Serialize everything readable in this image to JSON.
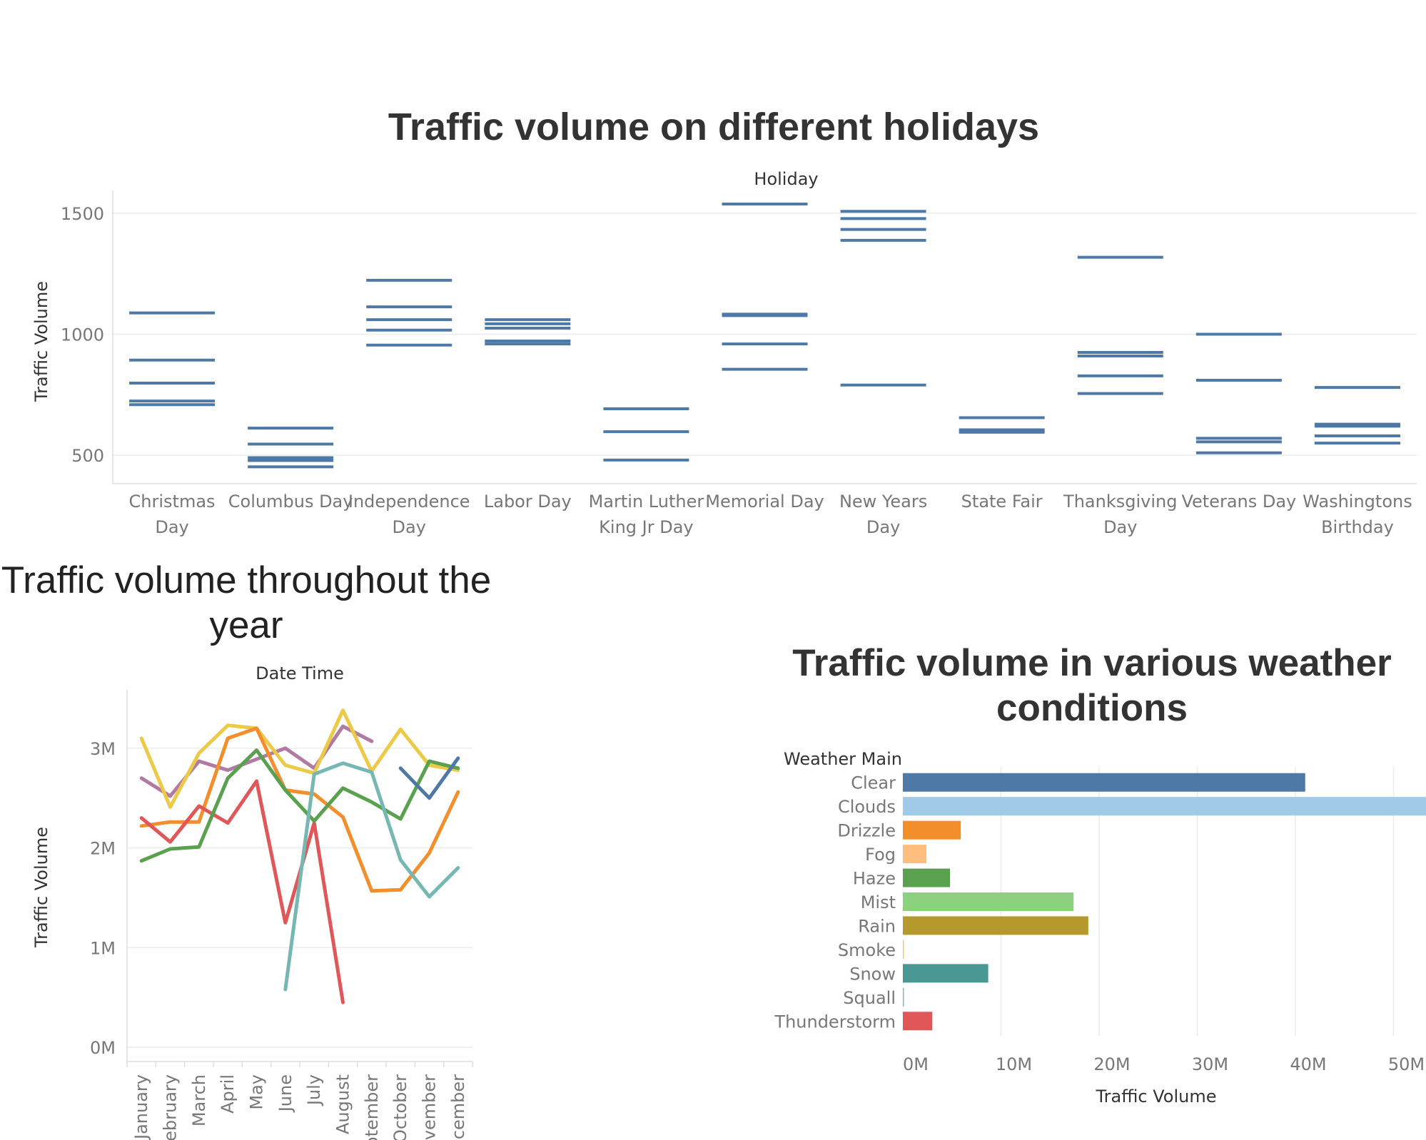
{
  "titles": {
    "holiday": "Traffic volume on different holidays",
    "year": "Traffic volume throughout the year",
    "weather": "Traffic volume in various weather conditions"
  },
  "colors": {
    "holiday_mark": "#4e79a7",
    "grid": "#ececec",
    "axis_text": "#777777"
  },
  "chart_data": [
    {
      "type": "gantt",
      "id": "holiday",
      "title": "Traffic volume on different holidays",
      "column_header": "Holiday",
      "ylabel": "Traffic Volume",
      "ylim": [
        400,
        1600
      ],
      "yticks": [
        500,
        1000,
        1500
      ],
      "grid": true,
      "categories": [
        {
          "label": [
            "Christmas",
            "Day"
          ],
          "values": [
            709,
            724,
            798,
            893,
            1088
          ]
        },
        {
          "label": [
            "Columbus Day"
          ],
          "values": [
            452,
            478,
            490,
            546,
            612
          ]
        },
        {
          "label": [
            "Independence",
            "Day"
          ],
          "values": [
            955,
            1017,
            1060,
            1113,
            1223
          ]
        },
        {
          "label": [
            "Labor Day"
          ],
          "values": [
            960,
            972,
            1025,
            1043,
            1060
          ]
        },
        {
          "label": [
            "Martin Luther",
            "King Jr Day"
          ],
          "values": [
            480,
            597,
            692
          ]
        },
        {
          "label": [
            "Memorial Day"
          ],
          "values": [
            855,
            960,
            1077,
            1083,
            1538
          ]
        },
        {
          "label": [
            "New Years",
            "Day"
          ],
          "values": [
            790,
            1388,
            1433,
            1478,
            1508
          ]
        },
        {
          "label": [
            "State Fair"
          ],
          "values": [
            595,
            605,
            655
          ]
        },
        {
          "label": [
            "Thanksgiving",
            "Day"
          ],
          "values": [
            755,
            828,
            910,
            925,
            1318
          ]
        },
        {
          "label": [
            "Veterans Day"
          ],
          "values": [
            510,
            555,
            570,
            810,
            1000
          ]
        },
        {
          "label": [
            "Washingtons",
            "Birthday"
          ],
          "values": [
            550,
            580,
            620,
            628,
            780
          ]
        }
      ]
    },
    {
      "type": "line",
      "id": "year",
      "title": "Traffic volume throughout the year",
      "column_header": "Date Time",
      "ylabel": "Traffic Volume",
      "ylim": [
        -0.1,
        3.6
      ],
      "yticks": [
        0,
        1,
        2,
        3
      ],
      "ytick_labels": [
        "0M",
        "1M",
        "2M",
        "3M"
      ],
      "grid": true,
      "categories": [
        "January",
        "February",
        "March",
        "April",
        "May",
        "June",
        "July",
        "August",
        "September",
        "October",
        "November",
        "December"
      ],
      "series": [
        {
          "color": "#b07aa1",
          "values": [
            2.7,
            2.52,
            2.87,
            2.78,
            2.89,
            3.0,
            2.8,
            3.22,
            3.07,
            null,
            null,
            null
          ]
        },
        {
          "color": "#edc948",
          "values": [
            3.1,
            2.41,
            2.95,
            3.23,
            3.2,
            2.83,
            2.75,
            3.38,
            2.77,
            3.19,
            2.83,
            2.78
          ]
        },
        {
          "color": "#f28e2b",
          "values": [
            2.22,
            2.26,
            2.26,
            3.1,
            3.2,
            2.58,
            2.54,
            2.31,
            1.57,
            1.58,
            1.95,
            2.56
          ]
        },
        {
          "color": "#e15759",
          "values": [
            2.3,
            2.06,
            2.42,
            2.25,
            2.67,
            1.25,
            2.25,
            0.45,
            null,
            null,
            null,
            null
          ]
        },
        {
          "color": "#59a14f",
          "values": [
            1.87,
            1.99,
            2.01,
            2.7,
            2.98,
            2.58,
            2.27,
            2.6,
            2.46,
            2.29,
            2.87,
            2.8
          ]
        },
        {
          "color": "#76b7b2",
          "values": [
            null,
            null,
            null,
            null,
            null,
            0.58,
            2.74,
            2.85,
            2.76,
            1.88,
            1.51,
            1.8
          ]
        },
        {
          "color": "#4e79a7",
          "values": [
            null,
            null,
            null,
            null,
            null,
            null,
            null,
            null,
            null,
            2.8,
            2.5,
            2.9
          ]
        }
      ]
    },
    {
      "type": "bar",
      "id": "weather",
      "orientation": "horizontal",
      "title": "Traffic volume in various weather conditions",
      "row_header": "Weather Main",
      "xlabel": "Traffic Volume",
      "xlim": [
        0,
        56
      ],
      "xticks": [
        0,
        10,
        20,
        30,
        40,
        50
      ],
      "xtick_labels": [
        "0M",
        "10M",
        "20M",
        "30M",
        "40M",
        "50M"
      ],
      "grid": true,
      "categories": [
        "Clear",
        "Clouds",
        "Drizzle",
        "Fog",
        "Haze",
        "Mist",
        "Rain",
        "Smoke",
        "Snow",
        "Squall",
        "Thunderstorm"
      ],
      "values": [
        41.0,
        54.9,
        5.9,
        2.4,
        4.8,
        17.4,
        18.9,
        0.05,
        8.7,
        0.04,
        3.0
      ],
      "colors": [
        "#4e79a7",
        "#a0cbe8",
        "#f28e2b",
        "#ffbe7d",
        "#59a14f",
        "#8cd17d",
        "#b6992d",
        "#f1ce63",
        "#499894",
        "#86bcb6",
        "#e15759"
      ]
    }
  ]
}
